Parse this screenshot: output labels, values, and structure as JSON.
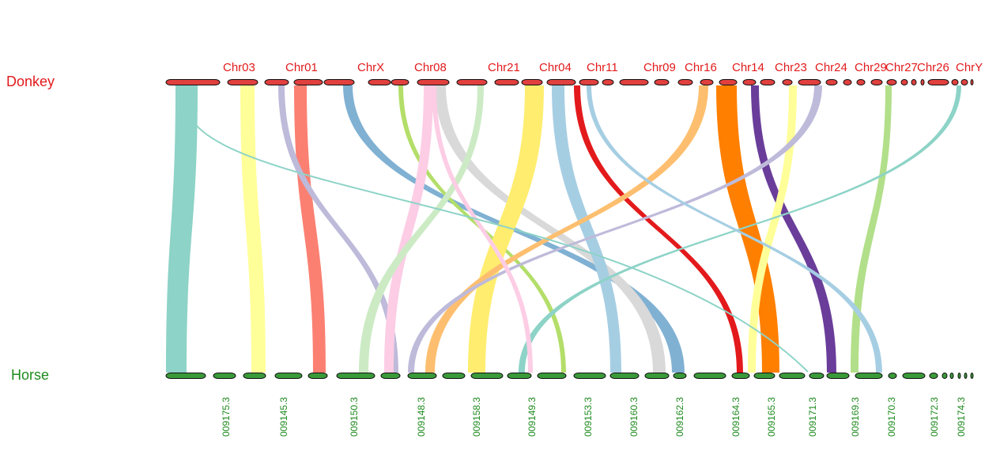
{
  "species": {
    "top": "Donkey",
    "bottom": "Horse"
  },
  "colors": {
    "top_track": "#e0403e",
    "bottom_track": "#3a9a3a",
    "top_label": "#e31a1c",
    "bottom_label": "#1e8a1e"
  },
  "top_chromosomes": [
    {
      "label": "Chr03"
    },
    {
      "label": "Chr01"
    },
    {
      "label": "ChrX"
    },
    {
      "label": "Chr08"
    },
    {
      "label": "Chr21"
    },
    {
      "label": "Chr04"
    },
    {
      "label": "Chr11"
    },
    {
      "label": "Chr09"
    },
    {
      "label": "Chr16"
    },
    {
      "label": "Chr14"
    },
    {
      "label": "Chr23"
    },
    {
      "label": "Chr24"
    },
    {
      "label": "Chr29"
    },
    {
      "label": "Chr27"
    },
    {
      "label": "Chr26"
    },
    {
      "label": "ChrY"
    }
  ],
  "bottom_chromosomes": [
    {
      "label": "009175.3"
    },
    {
      "label": "009145.3"
    },
    {
      "label": "009150.3"
    },
    {
      "label": "009148.3"
    },
    {
      "label": "009158.3"
    },
    {
      "label": "009149.3"
    },
    {
      "label": "009153.3"
    },
    {
      "label": "009160.3"
    },
    {
      "label": "009162.3"
    },
    {
      "label": "009164.3"
    },
    {
      "label": "009165.3"
    },
    {
      "label": "009171.3"
    },
    {
      "label": "009169.3"
    },
    {
      "label": "009170.3"
    },
    {
      "label": "009172.3"
    },
    {
      "label": "009174.3"
    }
  ],
  "links": [
    {
      "color": "#8dd3c7"
    },
    {
      "color": "#ffff99"
    },
    {
      "color": "#fb8072"
    },
    {
      "color": "#bebada"
    },
    {
      "color": "#80b1d3"
    },
    {
      "color": "#b3de69"
    },
    {
      "color": "#fccde5"
    },
    {
      "color": "#d9d9d9"
    },
    {
      "color": "#ccebc5"
    },
    {
      "color": "#ffed6f"
    },
    {
      "color": "#a6cee3"
    },
    {
      "color": "#e31a1c"
    },
    {
      "color": "#fdbf6f"
    },
    {
      "color": "#ff7f00"
    },
    {
      "color": "#6a3d9a"
    },
    {
      "color": "#ffff99"
    },
    {
      "color": "#bebada"
    },
    {
      "color": "#b2df8a"
    },
    {
      "color": "#8dd3c7"
    }
  ]
}
